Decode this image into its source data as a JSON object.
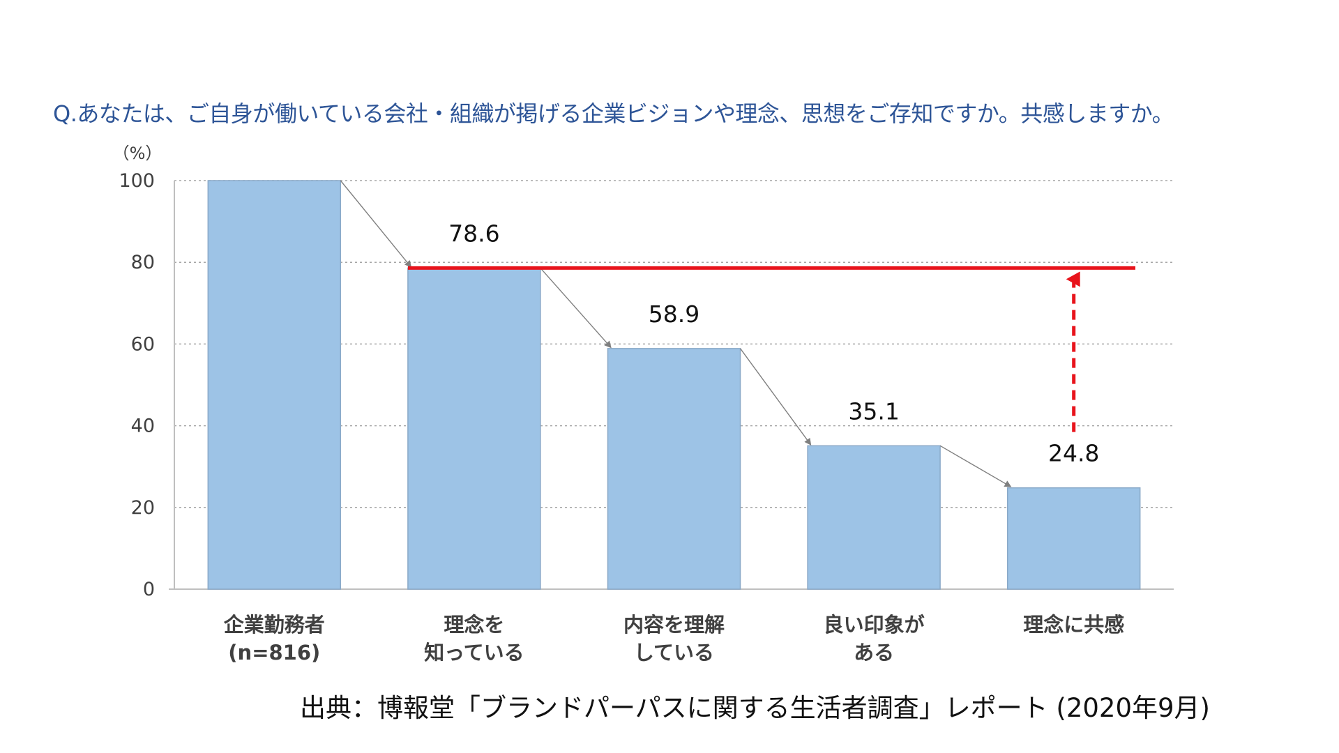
{
  "question": "Q.あなたは、ご自身が働いている会社・組織が掲げる企業ビジョンや理念、思想をご存知ですか。共感しますか。",
  "source": "出典：博報堂「ブランドパーパスに関する生活者調査」レポート (2020年9月)",
  "chart_data": {
    "type": "bar",
    "unit_label": "（%）",
    "categories": [
      [
        "企業勤務者",
        "(n=816)"
      ],
      [
        "理念を",
        "知っている"
      ],
      [
        "内容を理解",
        "している"
      ],
      [
        "良い印象が",
        "ある"
      ],
      [
        "理念に共感"
      ]
    ],
    "values": [
      100,
      78.6,
      58.9,
      35.1,
      24.8
    ],
    "data_labels": [
      "",
      "78.6",
      "58.9",
      "35.1",
      "24.8"
    ],
    "yticks": [
      0,
      20,
      40,
      60,
      80,
      100
    ],
    "ylim": [
      0,
      100
    ],
    "grid": true,
    "legend": "none",
    "reference_line": {
      "value": 78.6,
      "color": "#e8141c"
    },
    "gap_arrow": {
      "from": 24.8,
      "to": 78.6,
      "color": "#e8141c",
      "style": "dashed"
    },
    "colors": {
      "bar": "#9dc3e6",
      "bar_border": "#8aa9c8",
      "grid": "#a6a6a6",
      "axis": "#bfbfbf",
      "step_arrow": "#7f7f7f"
    }
  }
}
